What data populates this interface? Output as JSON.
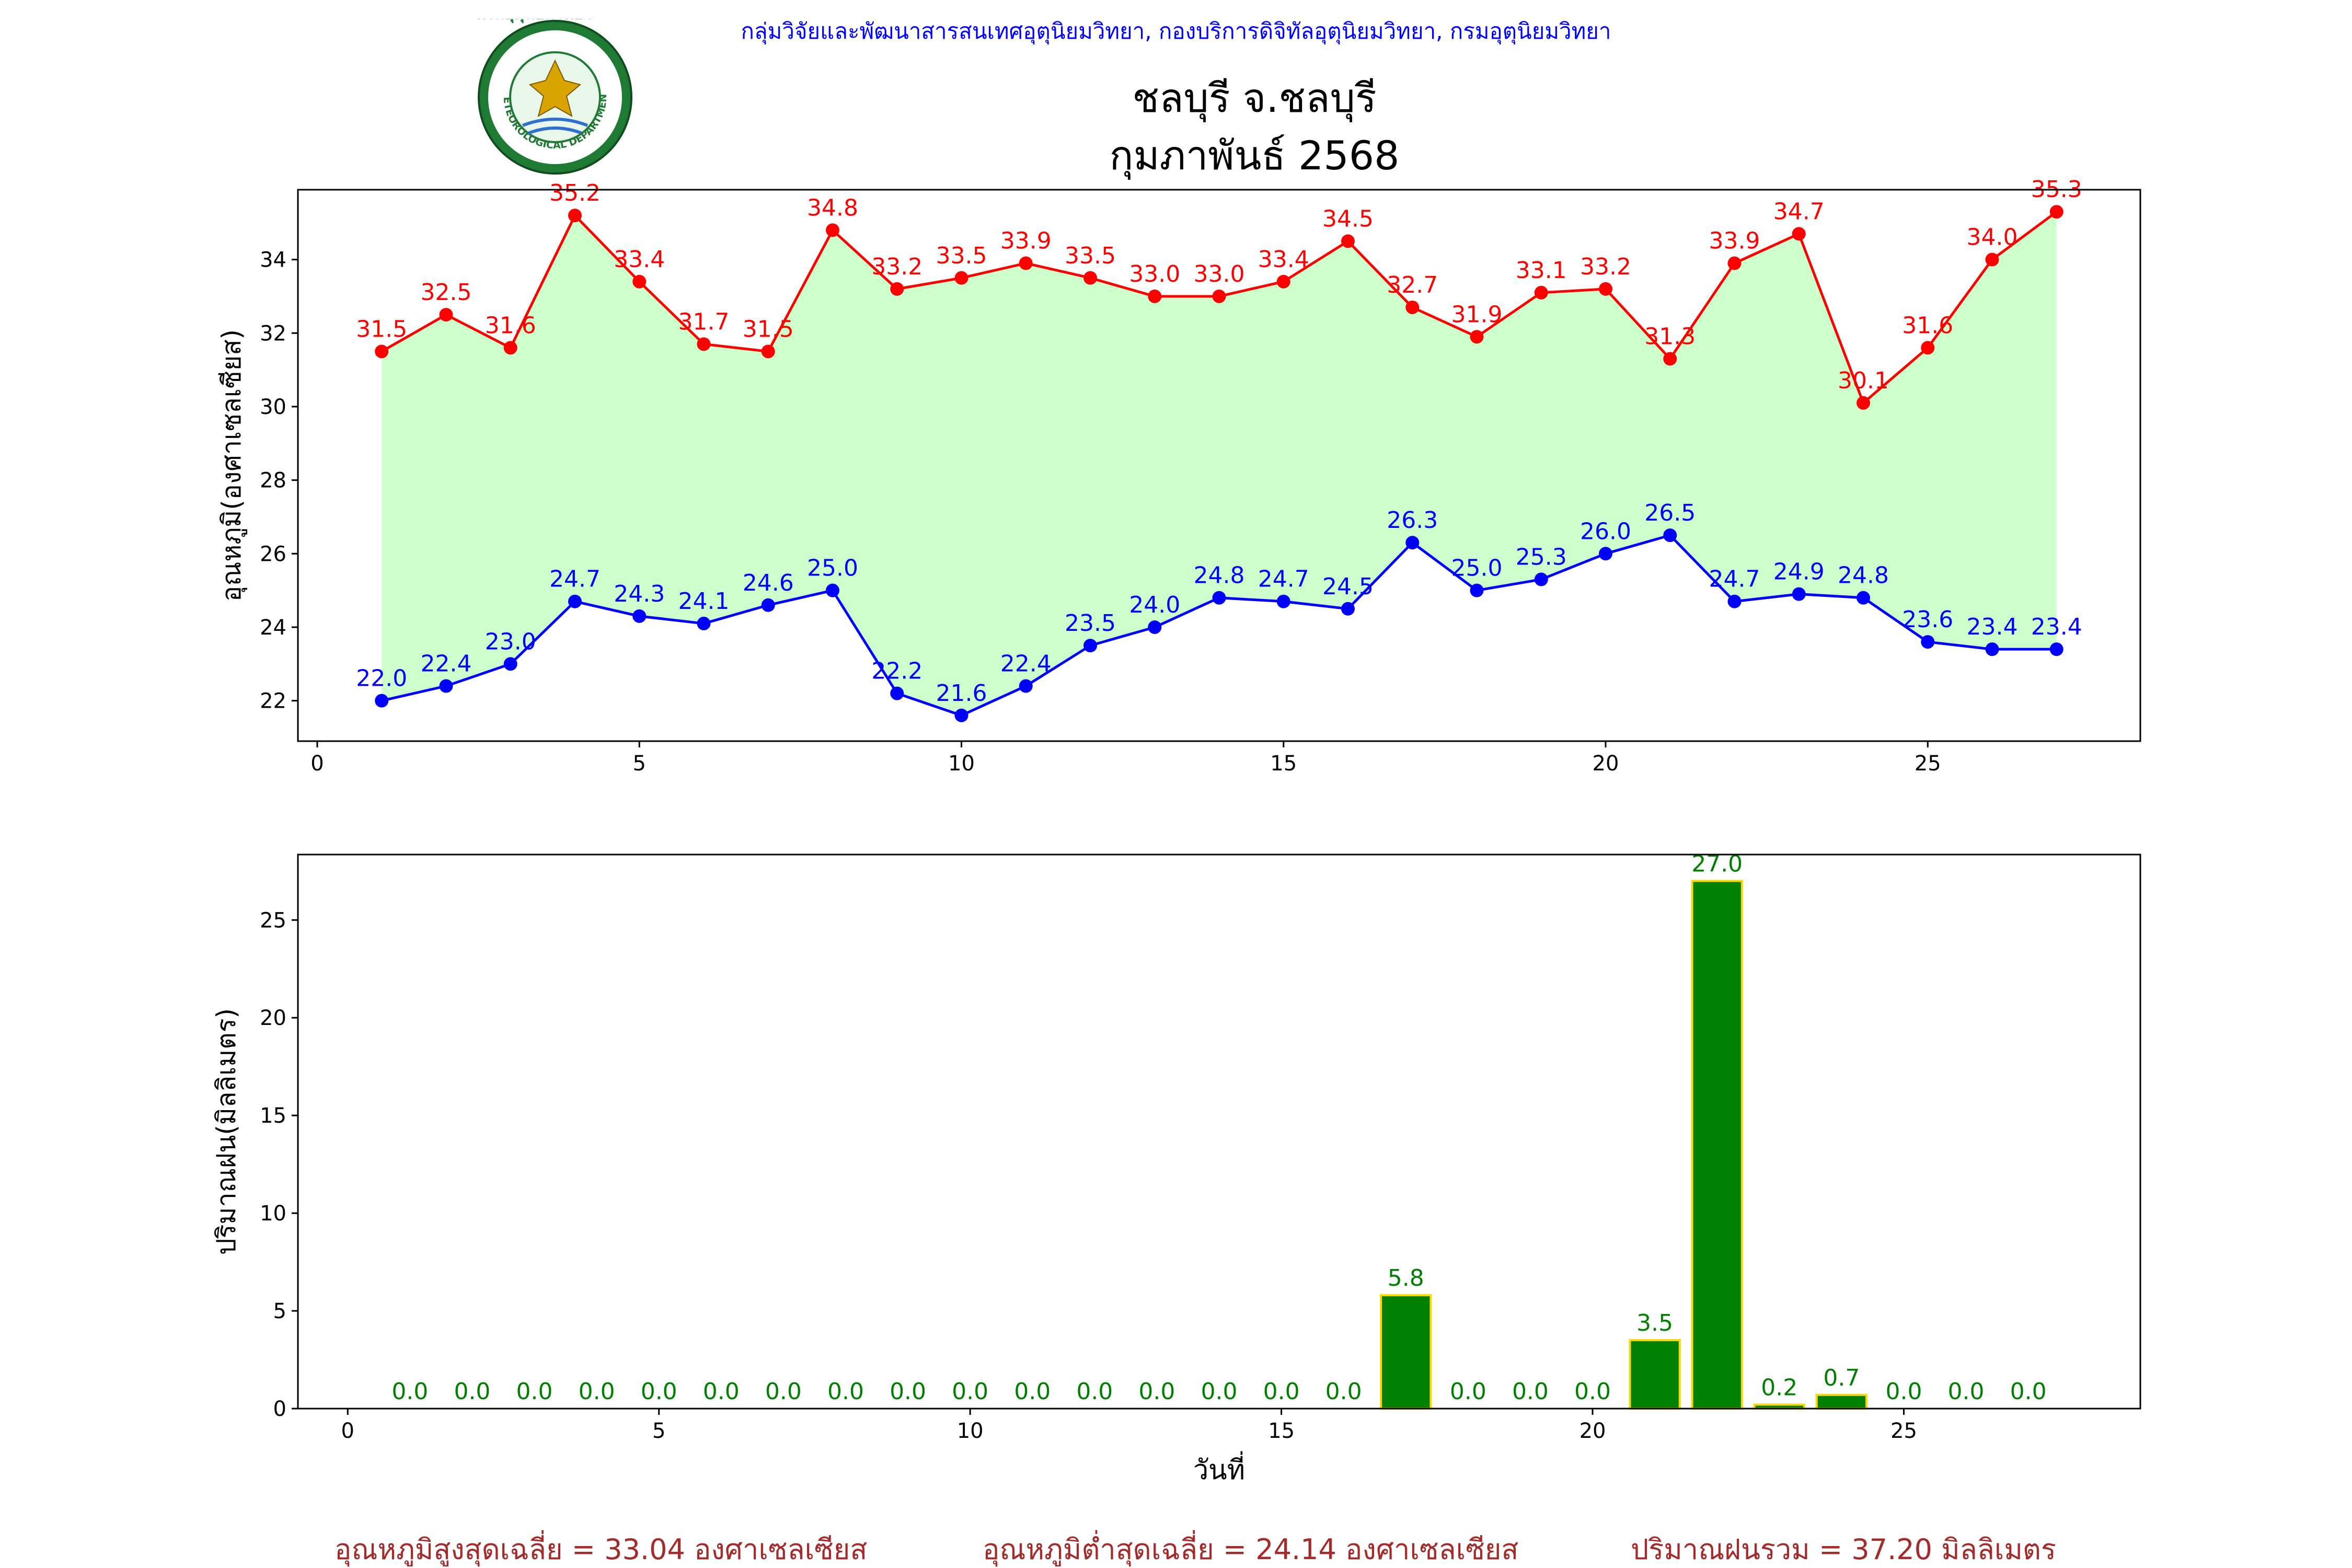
{
  "header": {
    "agency": "กลุ่มวิจัยและพัฒนาสารสนเทศอุตุนิยมวิทยา, กองบริการดิจิทัลอุตุนิยมวิทยา, กรมอุตุนิยมวิทยา",
    "title_line1": "ชลบุรี จ.ชลบุรี",
    "title_line2": "กุมภาพันธ์ 2568",
    "logo": {
      "icon": "meteorological-department-seal",
      "text_top": "กรมอุตุนิยมวิทยา",
      "text_bottom": "METEOROLOGICAL DEPARTMENT"
    }
  },
  "colors": {
    "max": "#ff0000",
    "min": "#0000ff",
    "fill": "#ccffcc",
    "bar": "#008000",
    "bar_edge": "#ffd700",
    "summary": "#a52a2a",
    "agency": "#0000ff"
  },
  "chart_data": [
    {
      "type": "line",
      "ylabel": "อุณหภูมิ(องศาเซลเซียส)",
      "xlabel": "",
      "x": [
        1,
        2,
        3,
        4,
        5,
        6,
        7,
        8,
        9,
        10,
        11,
        12,
        13,
        14,
        15,
        16,
        17,
        18,
        19,
        20,
        21,
        22,
        23,
        24,
        25,
        26,
        27
      ],
      "xlim": [
        -0.3,
        28.3
      ],
      "ylim": [
        20.9,
        35.9
      ],
      "xticks": [
        0,
        5,
        10,
        15,
        20,
        25
      ],
      "yticks": [
        22,
        24,
        26,
        28,
        30,
        32,
        34
      ],
      "grid": false,
      "fill_between": true,
      "series": [
        {
          "key": "max",
          "values": [
            31.5,
            32.5,
            31.6,
            35.2,
            33.4,
            31.7,
            31.5,
            34.8,
            33.2,
            33.5,
            33.9,
            33.5,
            33.0,
            33.0,
            33.4,
            34.5,
            32.7,
            31.9,
            33.1,
            33.2,
            31.3,
            33.9,
            34.7,
            30.1,
            31.6,
            34.0,
            35.3
          ]
        },
        {
          "key": "min",
          "values": [
            22.0,
            22.4,
            23.0,
            24.7,
            24.3,
            24.1,
            24.6,
            25.0,
            22.2,
            21.6,
            22.4,
            23.5,
            24.0,
            24.8,
            24.7,
            24.5,
            26.3,
            25.0,
            25.3,
            26.0,
            26.5,
            24.7,
            24.9,
            24.8,
            23.6,
            23.4,
            23.4
          ]
        }
      ]
    },
    {
      "type": "bar",
      "ylabel": "ปริมาณฝน(มิลลิเมตร)",
      "xlabel": "วันที่",
      "x": [
        1,
        2,
        3,
        4,
        5,
        6,
        7,
        8,
        9,
        10,
        11,
        12,
        13,
        14,
        15,
        16,
        17,
        18,
        19,
        20,
        21,
        22,
        23,
        24,
        25,
        26,
        27
      ],
      "values": [
        0.0,
        0.0,
        0.0,
        0.0,
        0.0,
        0.0,
        0.0,
        0.0,
        0.0,
        0.0,
        0.0,
        0.0,
        0.0,
        0.0,
        0.0,
        0.0,
        5.8,
        0.0,
        0.0,
        0.0,
        3.5,
        27.0,
        0.2,
        0.7,
        0.0,
        0.0,
        0.0
      ],
      "xlim": [
        -0.8,
        28.8
      ],
      "ylim": [
        0,
        28.35
      ],
      "xticks": [
        0,
        5,
        10,
        15,
        20,
        25
      ],
      "yticks": [
        0,
        5,
        10,
        15,
        20,
        25
      ],
      "grid": false
    }
  ],
  "summary": {
    "avg_max": "อุณหภูมิสูงสุดเฉลี่ย = 33.04 องศาเซลเซียส",
    "avg_min": "อุณหภูมิต่ำสุดเฉลี่ย = 24.14 องศาเซลเซียส",
    "total_rain": "ปริมาณฝนรวม = 37.20 มิลลิเมตร"
  }
}
